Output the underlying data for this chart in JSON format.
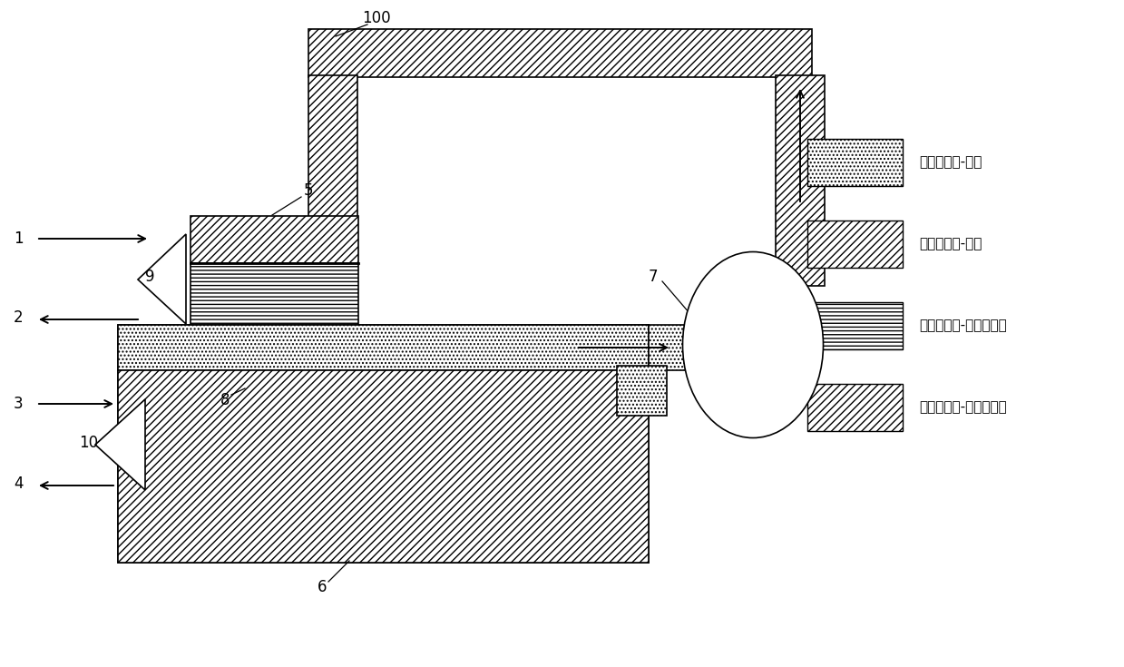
{
  "bg_color": "#ffffff",
  "lc": "#000000",
  "figsize": [
    12.39,
    7.35
  ],
  "dpi": 100,
  "xlim": [
    0,
    12.39
  ],
  "ylim": [
    0,
    7.35
  ],
  "legend": [
    {
      "hatch": "....",
      "label": "蜀气制冷剂-低压"
    },
    {
      "hatch": "////",
      "label": "制冷剂液体-低压"
    },
    {
      "hatch": "----",
      "label": "制冷剂液体-更高的压力"
    },
    {
      "hatch": "////",
      "label": "制冷剂茑气-更高的压力"
    }
  ],
  "lw": 1.2,
  "label_fs": 12,
  "legend_fs": 11
}
